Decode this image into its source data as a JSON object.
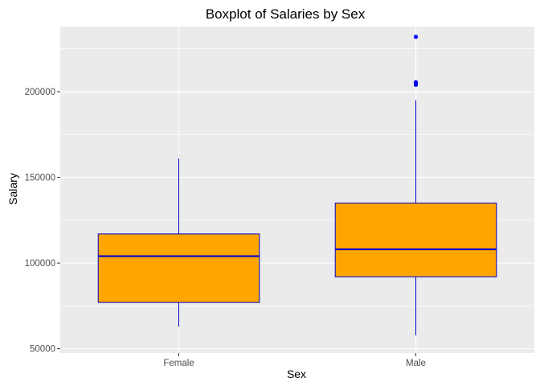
{
  "chart_data": {
    "type": "boxplot",
    "title": "Boxplot of Salaries by Sex",
    "xlabel": "Sex",
    "ylabel": "Salary",
    "categories": [
      "Female",
      "Male"
    ],
    "ylim": [
      47500,
      238000
    ],
    "y_ticks": [
      50000,
      100000,
      150000,
      200000
    ],
    "y_tick_labels": [
      "50000",
      "100000",
      "150000",
      "200000"
    ],
    "boxes": [
      {
        "category": "Female",
        "whisker_low": 63000,
        "q1": 77000,
        "median": 104000,
        "q3": 117000,
        "whisker_high": 161000,
        "outliers": []
      },
      {
        "category": "Male",
        "whisker_low": 57800,
        "q1": 92000,
        "median": 108000,
        "q3": 135000,
        "whisker_high": 195000,
        "outliers": [
          204000,
          205000,
          205500,
          232000
        ]
      }
    ],
    "colors": {
      "panel_background": "#EBEBEB",
      "grid_major": "#FFFFFF",
      "box_fill": "#FFA500",
      "box_line": "#0000CD",
      "outlier": "#0000FF"
    },
    "grid": true,
    "legend": "none"
  }
}
